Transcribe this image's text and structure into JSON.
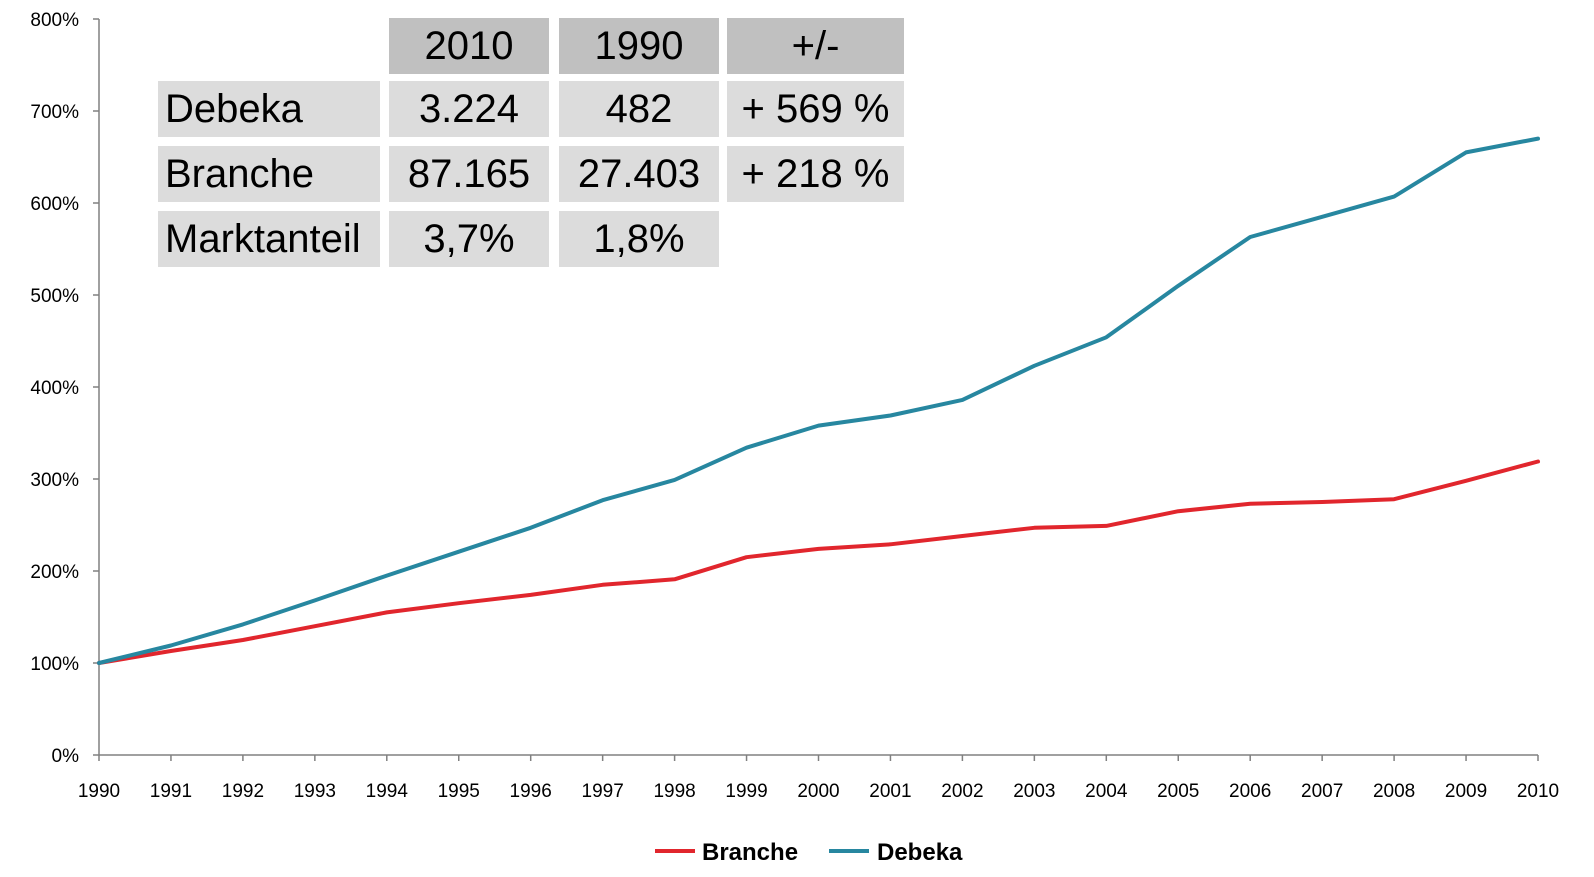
{
  "table": {
    "columns": [
      "2010",
      "1990",
      "+/-"
    ],
    "rows": [
      {
        "label": "Debeka",
        "values": [
          "3.224",
          "482",
          "+ 569 %"
        ]
      },
      {
        "label": "Branche",
        "values": [
          "87.165",
          "27.403",
          "+ 218 %"
        ]
      },
      {
        "label": "Marktanteil",
        "values": [
          "3,7%",
          "1,8%",
          ""
        ]
      }
    ]
  },
  "chart_data": {
    "type": "line",
    "title": "",
    "xlabel": "",
    "ylabel": "",
    "x": [
      1990,
      1991,
      1992,
      1993,
      1994,
      1995,
      1996,
      1997,
      1998,
      1999,
      2000,
      2001,
      2002,
      2003,
      2004,
      2005,
      2006,
      2007,
      2008,
      2009,
      2010
    ],
    "x_tick_labels": [
      "1990",
      "1991",
      "1992",
      "1993",
      "1994",
      "1995",
      "1996",
      "1997",
      "1998",
      "1999",
      "2000",
      "2001",
      "2002",
      "2003",
      "2004",
      "2005",
      "2006",
      "2007",
      "2008",
      "2009",
      "2010"
    ],
    "ylim": [
      0,
      800
    ],
    "y_ticks": [
      0,
      100,
      200,
      300,
      400,
      500,
      600,
      700,
      800
    ],
    "y_tick_labels": [
      "0%",
      "100%",
      "200%",
      "300%",
      "400%",
      "500%",
      "600%",
      "700%",
      "800%"
    ],
    "grid": false,
    "legend_position": "bottom-center",
    "series": [
      {
        "name": "Branche",
        "color": "#e1262d",
        "values": [
          100,
          113,
          125,
          140,
          155,
          165,
          174,
          185,
          191,
          215,
          224,
          229,
          238,
          247,
          249,
          265,
          273,
          275,
          278,
          298,
          319
        ]
      },
      {
        "name": "Debeka",
        "color": "#2787a0",
        "values": [
          100,
          119,
          142,
          168,
          195,
          221,
          247,
          277,
          299,
          334,
          358,
          369,
          386,
          423,
          454,
          510,
          563,
          585,
          607,
          655,
          670
        ]
      }
    ]
  }
}
